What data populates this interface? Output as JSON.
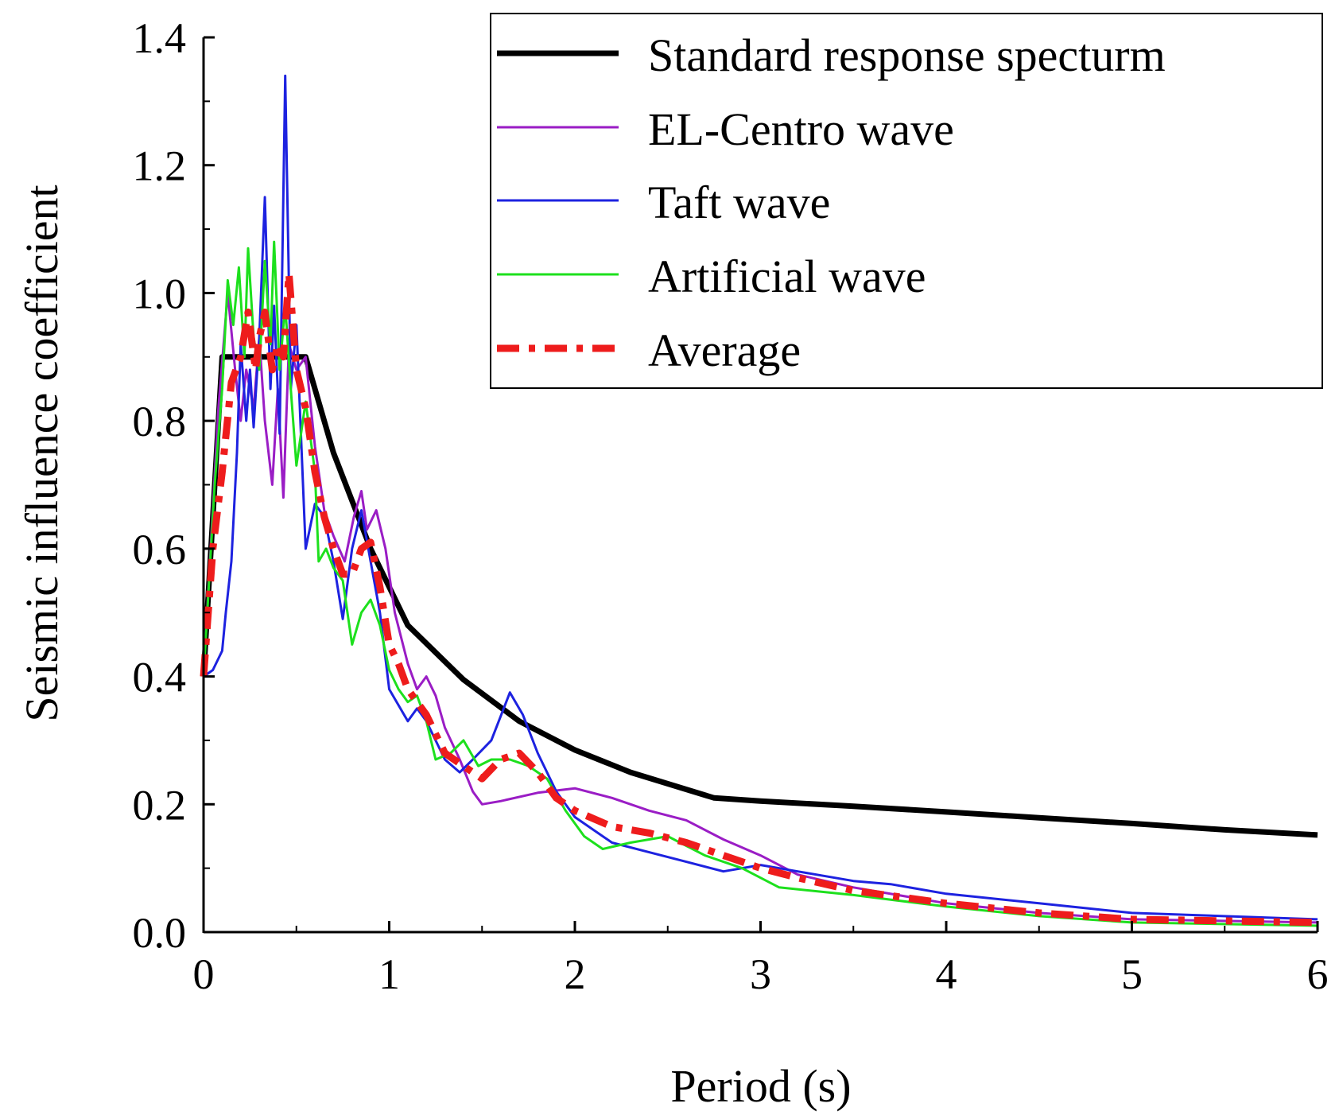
{
  "chart_data": {
    "type": "line",
    "title": "",
    "xlabel": "Period (s)",
    "ylabel": "Seismic influence coefficient",
    "xlim": [
      0,
      6
    ],
    "ylim": [
      0,
      1.4
    ],
    "x_ticks": [
      "0",
      "1",
      "2",
      "3",
      "4",
      "5",
      "6"
    ],
    "y_ticks": [
      "0.0",
      "0.2",
      "0.4",
      "0.6",
      "0.8",
      "1.0",
      "1.2",
      "1.4"
    ],
    "grid": false,
    "legend_position": "top-right",
    "series": [
      {
        "name": "Standard response specturm",
        "color": "#000000",
        "style": "solid-thick",
        "points": [
          [
            0,
            0.4
          ],
          [
            0.1,
            0.9
          ],
          [
            0.55,
            0.9
          ],
          [
            0.7,
            0.75
          ],
          [
            0.9,
            0.6
          ],
          [
            1.1,
            0.48
          ],
          [
            1.4,
            0.395
          ],
          [
            1.7,
            0.33
          ],
          [
            2.0,
            0.285
          ],
          [
            2.3,
            0.25
          ],
          [
            2.75,
            0.21
          ],
          [
            3.0,
            0.205
          ],
          [
            3.5,
            0.197
          ],
          [
            4.0,
            0.188
          ],
          [
            4.5,
            0.179
          ],
          [
            5.0,
            0.17
          ],
          [
            5.5,
            0.16
          ],
          [
            6.0,
            0.152
          ]
        ]
      },
      {
        "name": "EL-Centro wave",
        "color": "#9a1dc5",
        "style": "solid",
        "points": [
          [
            0,
            0.4
          ],
          [
            0.08,
            0.82
          ],
          [
            0.13,
            1.0
          ],
          [
            0.17,
            0.88
          ],
          [
            0.2,
            0.8
          ],
          [
            0.23,
            0.88
          ],
          [
            0.27,
            0.82
          ],
          [
            0.3,
            0.93
          ],
          [
            0.33,
            0.8
          ],
          [
            0.37,
            0.7
          ],
          [
            0.4,
            0.85
          ],
          [
            0.43,
            0.68
          ],
          [
            0.46,
            0.92
          ],
          [
            0.5,
            0.88
          ],
          [
            0.55,
            0.9
          ],
          [
            0.6,
            0.76
          ],
          [
            0.65,
            0.66
          ],
          [
            0.7,
            0.62
          ],
          [
            0.76,
            0.58
          ],
          [
            0.81,
            0.65
          ],
          [
            0.85,
            0.69
          ],
          [
            0.88,
            0.63
          ],
          [
            0.93,
            0.66
          ],
          [
            0.98,
            0.6
          ],
          [
            1.03,
            0.5
          ],
          [
            1.1,
            0.42
          ],
          [
            1.15,
            0.38
          ],
          [
            1.2,
            0.4
          ],
          [
            1.25,
            0.37
          ],
          [
            1.3,
            0.32
          ],
          [
            1.38,
            0.27
          ],
          [
            1.45,
            0.22
          ],
          [
            1.5,
            0.2
          ],
          [
            1.6,
            0.205
          ],
          [
            1.8,
            0.218
          ],
          [
            2.0,
            0.225
          ],
          [
            2.2,
            0.21
          ],
          [
            2.4,
            0.19
          ],
          [
            2.6,
            0.175
          ],
          [
            2.8,
            0.145
          ],
          [
            3.0,
            0.12
          ],
          [
            3.2,
            0.09
          ],
          [
            3.5,
            0.07
          ],
          [
            4.0,
            0.045
          ],
          [
            4.5,
            0.03
          ],
          [
            5.0,
            0.02
          ],
          [
            6.0,
            0.015
          ]
        ]
      },
      {
        "name": "Taft wave",
        "color": "#1d22e0",
        "style": "solid",
        "points": [
          [
            0,
            0.4
          ],
          [
            0.05,
            0.41
          ],
          [
            0.1,
            0.44
          ],
          [
            0.12,
            0.5
          ],
          [
            0.15,
            0.58
          ],
          [
            0.18,
            0.75
          ],
          [
            0.2,
            0.92
          ],
          [
            0.23,
            0.8
          ],
          [
            0.25,
            0.88
          ],
          [
            0.27,
            0.79
          ],
          [
            0.3,
            0.93
          ],
          [
            0.33,
            1.15
          ],
          [
            0.36,
            0.85
          ],
          [
            0.38,
            0.98
          ],
          [
            0.41,
            0.78
          ],
          [
            0.44,
            1.34
          ],
          [
            0.47,
            0.85
          ],
          [
            0.5,
            0.95
          ],
          [
            0.55,
            0.6
          ],
          [
            0.6,
            0.67
          ],
          [
            0.65,
            0.65
          ],
          [
            0.7,
            0.58
          ],
          [
            0.75,
            0.49
          ],
          [
            0.8,
            0.6
          ],
          [
            0.85,
            0.66
          ],
          [
            0.9,
            0.58
          ],
          [
            0.95,
            0.5
          ],
          [
            1.0,
            0.38
          ],
          [
            1.1,
            0.33
          ],
          [
            1.15,
            0.35
          ],
          [
            1.2,
            0.33
          ],
          [
            1.3,
            0.27
          ],
          [
            1.38,
            0.25
          ],
          [
            1.45,
            0.27
          ],
          [
            1.55,
            0.3
          ],
          [
            1.65,
            0.375
          ],
          [
            1.72,
            0.34
          ],
          [
            1.8,
            0.28
          ],
          [
            1.9,
            0.22
          ],
          [
            2.0,
            0.18
          ],
          [
            2.2,
            0.14
          ],
          [
            2.4,
            0.125
          ],
          [
            2.6,
            0.11
          ],
          [
            2.8,
            0.095
          ],
          [
            3.0,
            0.105
          ],
          [
            3.2,
            0.095
          ],
          [
            3.5,
            0.08
          ],
          [
            3.7,
            0.075
          ],
          [
            4.0,
            0.06
          ],
          [
            4.5,
            0.045
          ],
          [
            5.0,
            0.03
          ],
          [
            6.0,
            0.02
          ]
        ]
      },
      {
        "name": "Artificial wave",
        "color": "#1de01d",
        "style": "solid",
        "points": [
          [
            0,
            0.4
          ],
          [
            0.06,
            0.7
          ],
          [
            0.1,
            0.85
          ],
          [
            0.13,
            1.02
          ],
          [
            0.16,
            0.95
          ],
          [
            0.19,
            1.04
          ],
          [
            0.22,
            0.9
          ],
          [
            0.24,
            1.07
          ],
          [
            0.27,
            0.93
          ],
          [
            0.3,
            0.88
          ],
          [
            0.33,
            1.05
          ],
          [
            0.36,
            0.92
          ],
          [
            0.38,
            1.08
          ],
          [
            0.41,
            0.88
          ],
          [
            0.44,
            0.98
          ],
          [
            0.47,
            0.85
          ],
          [
            0.5,
            0.73
          ],
          [
            0.55,
            0.83
          ],
          [
            0.6,
            0.72
          ],
          [
            0.62,
            0.58
          ],
          [
            0.66,
            0.6
          ],
          [
            0.7,
            0.57
          ],
          [
            0.75,
            0.55
          ],
          [
            0.8,
            0.45
          ],
          [
            0.85,
            0.5
          ],
          [
            0.9,
            0.52
          ],
          [
            0.95,
            0.48
          ],
          [
            1.0,
            0.41
          ],
          [
            1.05,
            0.38
          ],
          [
            1.1,
            0.36
          ],
          [
            1.15,
            0.37
          ],
          [
            1.2,
            0.33
          ],
          [
            1.25,
            0.27
          ],
          [
            1.33,
            0.28
          ],
          [
            1.4,
            0.3
          ],
          [
            1.48,
            0.26
          ],
          [
            1.55,
            0.27
          ],
          [
            1.65,
            0.27
          ],
          [
            1.75,
            0.26
          ],
          [
            1.85,
            0.24
          ],
          [
            1.95,
            0.19
          ],
          [
            2.05,
            0.15
          ],
          [
            2.15,
            0.13
          ],
          [
            2.3,
            0.14
          ],
          [
            2.5,
            0.15
          ],
          [
            2.7,
            0.12
          ],
          [
            2.9,
            0.1
          ],
          [
            3.1,
            0.07
          ],
          [
            3.5,
            0.058
          ],
          [
            4.0,
            0.04
          ],
          [
            4.5,
            0.025
          ],
          [
            5.0,
            0.015
          ],
          [
            6.0,
            0.01
          ]
        ]
      },
      {
        "name": "Average",
        "color": "#ee1c1c",
        "style": "dash-dot-thick",
        "points": [
          [
            0,
            0.4
          ],
          [
            0.05,
            0.6
          ],
          [
            0.1,
            0.72
          ],
          [
            0.15,
            0.86
          ],
          [
            0.2,
            0.9
          ],
          [
            0.24,
            0.97
          ],
          [
            0.28,
            0.88
          ],
          [
            0.3,
            0.93
          ],
          [
            0.33,
            0.97
          ],
          [
            0.37,
            0.88
          ],
          [
            0.4,
            0.92
          ],
          [
            0.43,
            0.9
          ],
          [
            0.46,
            1.03
          ],
          [
            0.5,
            0.88
          ],
          [
            0.55,
            0.82
          ],
          [
            0.6,
            0.72
          ],
          [
            0.65,
            0.65
          ],
          [
            0.7,
            0.6
          ],
          [
            0.75,
            0.56
          ],
          [
            0.8,
            0.56
          ],
          [
            0.85,
            0.6
          ],
          [
            0.9,
            0.61
          ],
          [
            0.95,
            0.54
          ],
          [
            1.0,
            0.45
          ],
          [
            1.05,
            0.42
          ],
          [
            1.1,
            0.38
          ],
          [
            1.2,
            0.34
          ],
          [
            1.3,
            0.28
          ],
          [
            1.4,
            0.26
          ],
          [
            1.5,
            0.24
          ],
          [
            1.6,
            0.27
          ],
          [
            1.7,
            0.28
          ],
          [
            1.8,
            0.25
          ],
          [
            1.9,
            0.21
          ],
          [
            2.0,
            0.19
          ],
          [
            2.2,
            0.165
          ],
          [
            2.4,
            0.155
          ],
          [
            2.6,
            0.14
          ],
          [
            2.8,
            0.12
          ],
          [
            3.0,
            0.1
          ],
          [
            3.2,
            0.085
          ],
          [
            3.5,
            0.065
          ],
          [
            4.0,
            0.045
          ],
          [
            4.5,
            0.03
          ],
          [
            5.0,
            0.02
          ],
          [
            6.0,
            0.015
          ]
        ]
      }
    ]
  }
}
